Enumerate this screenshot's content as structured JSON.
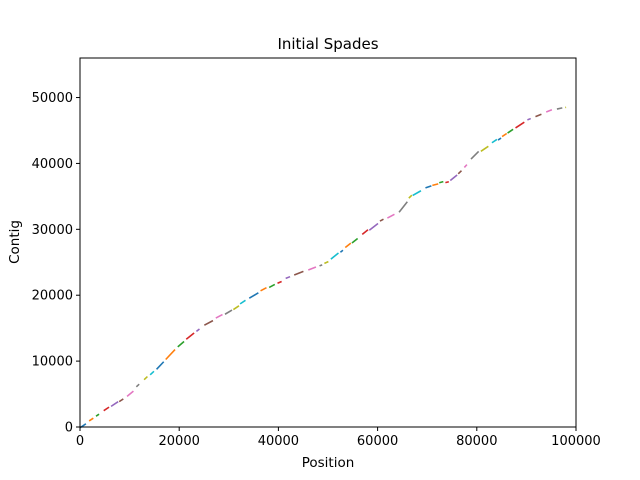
{
  "chart_data": {
    "type": "line",
    "title": "Initial Spades",
    "xlabel": "Position",
    "ylabel": "Contig",
    "xlim": [
      0,
      100000
    ],
    "ylim": [
      0,
      56000
    ],
    "xticks": [
      0,
      20000,
      40000,
      60000,
      80000,
      100000
    ],
    "yticks": [
      0,
      10000,
      20000,
      30000,
      40000,
      50000
    ],
    "xtick_labels": [
      "0",
      "20000",
      "40000",
      "60000",
      "80000",
      "100000"
    ],
    "ytick_labels": [
      "0",
      "10000",
      "20000",
      "30000",
      "40000",
      "50000"
    ],
    "grid": false,
    "legend": "none",
    "palette": [
      "#1f77b4",
      "#ff7f0e",
      "#2ca02c",
      "#d62728",
      "#9467bd",
      "#8c564b",
      "#e377c2",
      "#7f7f7f",
      "#bcbd22",
      "#17becf"
    ],
    "trend": {
      "x": [
        0,
        5000,
        10000,
        15000,
        20000,
        25000,
        30000,
        35000,
        40000,
        45000,
        50000,
        55000,
        60000,
        65000,
        66500,
        70000,
        75000,
        77000,
        80000,
        85000,
        90000,
        95000,
        98000
      ],
      "y": [
        0,
        2500,
        5000,
        8500,
        12500,
        15500,
        17500,
        20000,
        22000,
        23500,
        25000,
        28000,
        31000,
        33000,
        35000,
        36500,
        37500,
        39000,
        41500,
        44000,
        46500,
        48000,
        48500
      ]
    }
  }
}
